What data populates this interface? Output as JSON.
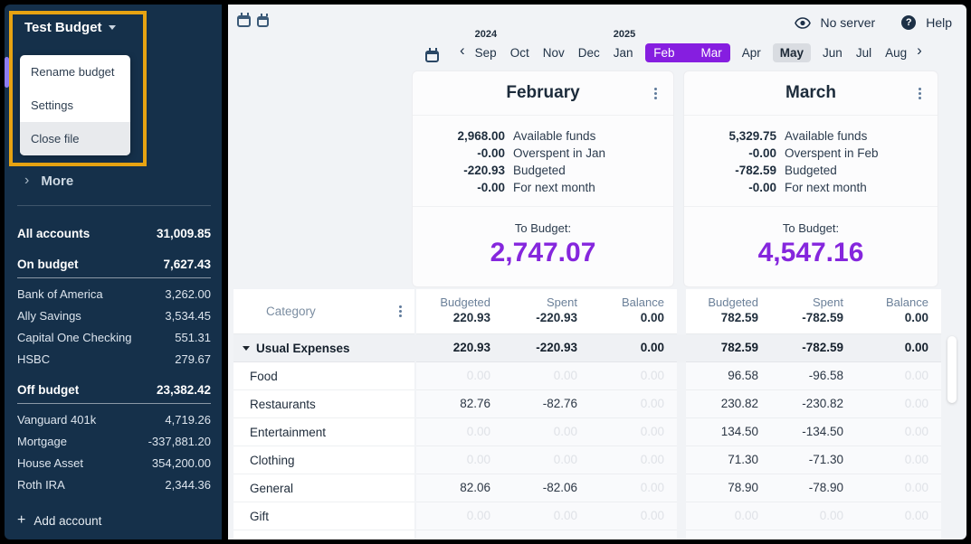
{
  "colors": {
    "sidebar_bg": "#15304a",
    "highlight": "#e7a312",
    "accent_purple": "#8526dd",
    "pill_purple": "#861ee0",
    "page_bg": "#f1f3f6",
    "card_bg": "#fcfcfd",
    "block_bg": "#f9fafc",
    "group_bg": "#eff1f4",
    "faint": "#dfe2e7",
    "muted": "#6b8099"
  },
  "sidebar": {
    "budget_name": "Test Budget",
    "menu_items": [
      {
        "label": "Rename budget",
        "active": false
      },
      {
        "label": "Settings",
        "active": false
      },
      {
        "label": "Close file",
        "active": true
      }
    ],
    "more_label": "More",
    "all_accounts": {
      "label": "All accounts",
      "value": "31,009.85"
    },
    "account_groups": [
      {
        "label": "On budget",
        "value": "7,627.43",
        "accounts": [
          {
            "name": "Bank of America",
            "value": "3,262.00"
          },
          {
            "name": "Ally Savings",
            "value": "3,534.45"
          },
          {
            "name": "Capital One Checking",
            "value": "551.31"
          },
          {
            "name": "HSBC",
            "value": "279.67"
          }
        ]
      },
      {
        "label": "Off budget",
        "value": "23,382.42",
        "accounts": [
          {
            "name": "Vanguard 401k",
            "value": "4,719.26"
          },
          {
            "name": "Mortgage",
            "value": "-337,881.20"
          },
          {
            "name": "House Asset",
            "value": "354,200.00"
          },
          {
            "name": "Roth IRA",
            "value": "2,344.36"
          }
        ]
      }
    ],
    "add_account_label": "Add account"
  },
  "header": {
    "no_server_label": "No server",
    "help_label": "Help"
  },
  "month_nav": {
    "months": [
      {
        "label": "Sep",
        "year": "2024"
      },
      {
        "label": "Oct"
      },
      {
        "label": "Nov"
      },
      {
        "label": "Dec"
      },
      {
        "label": "Jan",
        "year": "2025"
      },
      {
        "label": "Feb",
        "selected": true
      },
      {
        "label": "Mar",
        "selected": true
      },
      {
        "label": "Apr"
      },
      {
        "label": "May",
        "current": true
      },
      {
        "label": "Jun"
      },
      {
        "label": "Jul"
      },
      {
        "label": "Aug"
      }
    ]
  },
  "budget_cards": [
    {
      "month": "February",
      "rows": [
        {
          "value": "2,968.00",
          "label": "Available funds"
        },
        {
          "value": "-0.00",
          "label": "Overspent in Jan"
        },
        {
          "value": "-220.93",
          "label": "Budgeted"
        },
        {
          "value": "-0.00",
          "label": "For next month"
        }
      ],
      "to_budget_label": "To Budget:",
      "to_budget": "2,747.07"
    },
    {
      "month": "March",
      "rows": [
        {
          "value": "5,329.75",
          "label": "Available funds"
        },
        {
          "value": "-0.00",
          "label": "Overspent in Feb"
        },
        {
          "value": "-782.59",
          "label": "Budgeted"
        },
        {
          "value": "-0.00",
          "label": "For next month"
        }
      ],
      "to_budget_label": "To Budget:",
      "to_budget": "4,547.16"
    }
  ],
  "table": {
    "category_header": "Category",
    "column_headers": [
      "Budgeted",
      "Spent",
      "Balance"
    ],
    "month_totals": [
      [
        "220.93",
        "-220.93",
        "0.00"
      ],
      [
        "782.59",
        "-782.59",
        "0.00"
      ]
    ],
    "rows": [
      {
        "name": "Usual Expenses",
        "group": true,
        "months": [
          [
            "220.93",
            "-220.93",
            "0.00"
          ],
          [
            "782.59",
            "-782.59",
            "0.00"
          ]
        ]
      },
      {
        "name": "Food",
        "months": [
          [
            "0.00",
            "0.00",
            "0.00"
          ],
          [
            "96.58",
            "-96.58",
            "0.00"
          ]
        ]
      },
      {
        "name": "Restaurants",
        "months": [
          [
            "82.76",
            "-82.76",
            "0.00"
          ],
          [
            "230.82",
            "-230.82",
            "0.00"
          ]
        ]
      },
      {
        "name": "Entertainment",
        "months": [
          [
            "0.00",
            "0.00",
            "0.00"
          ],
          [
            "134.50",
            "-134.50",
            "0.00"
          ]
        ]
      },
      {
        "name": "Clothing",
        "months": [
          [
            "0.00",
            "0.00",
            "0.00"
          ],
          [
            "71.30",
            "-71.30",
            "0.00"
          ]
        ]
      },
      {
        "name": "General",
        "months": [
          [
            "82.06",
            "-82.06",
            "0.00"
          ],
          [
            "78.90",
            "-78.90",
            "0.00"
          ]
        ]
      },
      {
        "name": "Gift",
        "months": [
          [
            "0.00",
            "0.00",
            "0.00"
          ],
          [
            "0.00",
            "0.00",
            "0.00"
          ]
        ]
      }
    ]
  }
}
